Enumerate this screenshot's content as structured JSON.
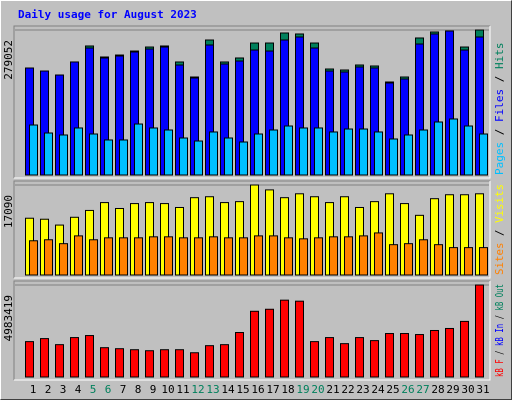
{
  "title": "Daily usage for August 2023",
  "legend_separator": " / ",
  "chart_data": [
    {
      "type": "bar",
      "ylim": [
        0,
        279052
      ],
      "yticks": [
        279052
      ],
      "series": [
        {
          "name": "Hits",
          "color": "#00805c",
          "values": [
            205900,
            200100,
            192400,
            217500,
            248300,
            227100,
            230900,
            238600,
            246300,
            248300,
            217500,
            188600,
            259800,
            217500,
            225200,
            254000,
            254000,
            273300,
            271400,
            254000,
            204000,
            202100,
            211700,
            209800,
            179000,
            188600,
            263700,
            275200,
            277100,
            246300,
            279052
          ]
        },
        {
          "name": "Files",
          "color": "#0000ff",
          "values": [
            205900,
            200100,
            192400,
            217500,
            244400,
            225200,
            229000,
            236700,
            242500,
            246300,
            211700,
            186700,
            250200,
            213600,
            219400,
            240500,
            238600,
            259800,
            265600,
            244400,
            200100,
            198200,
            207900,
            206000,
            177100,
            184800,
            252100,
            271400,
            277100,
            240500,
            265600
          ]
        },
        {
          "name": "Pages",
          "color": "#00c0ff",
          "values": [
            96200,
            80800,
            77000,
            90500,
            78900,
            67400,
            67400,
            98100,
            90500,
            86600,
            71200,
            65400,
            82800,
            71200,
            63500,
            78900,
            86600,
            94300,
            90500,
            90500,
            82800,
            88500,
            88500,
            82800,
            69300,
            77000,
            86600,
            102000,
            107800,
            94300,
            78900
          ]
        }
      ]
    },
    {
      "type": "bar",
      "ylim": [
        0,
        17090
      ],
      "yticks": [
        17090
      ],
      "series": [
        {
          "name": "Visits",
          "color": "#ffff00",
          "values": [
            10780,
            10590,
            9480,
            10960,
            12260,
            13750,
            12630,
            13560,
            13750,
            13560,
            12820,
            14680,
            14860,
            13750,
            13930,
            17090,
            16160,
            14680,
            15420,
            14860,
            13750,
            14860,
            12820,
            13930,
            15420,
            13560,
            11330,
            14490,
            15240,
            15240,
            15420
          ]
        },
        {
          "name": "Sites",
          "color": "#ff8000",
          "values": [
            6500,
            6690,
            5950,
            7430,
            6690,
            7060,
            7060,
            7060,
            7250,
            7250,
            7060,
            7060,
            7250,
            7060,
            7060,
            7430,
            7430,
            7060,
            6870,
            7060,
            7250,
            7250,
            7430,
            7990,
            5760,
            5950,
            6690,
            5760,
            5200,
            5200,
            5200
          ]
        }
      ]
    },
    {
      "type": "bar",
      "ylim": [
        0,
        4983419
      ],
      "yticks": [
        4983419
      ],
      "categories": [
        "1",
        "2",
        "3",
        "4",
        "5",
        "6",
        "7",
        "8",
        "9",
        "10",
        "11",
        "12",
        "13",
        "14",
        "15",
        "16",
        "17",
        "18",
        "19",
        "20",
        "21",
        "22",
        "23",
        "24",
        "25",
        "26",
        "27",
        "28",
        "29",
        "30",
        "31"
      ],
      "category_colors": [
        "#000000",
        "#000000",
        "#000000",
        "#000000",
        "#00805c",
        "#00805c",
        "#000000",
        "#000000",
        "#000000",
        "#000000",
        "#000000",
        "#00805c",
        "#00805c",
        "#000000",
        "#000000",
        "#000000",
        "#000000",
        "#000000",
        "#00805c",
        "#00805c",
        "#000000",
        "#000000",
        "#000000",
        "#000000",
        "#000000",
        "#00805c",
        "#00805c",
        "#000000",
        "#000000",
        "#000000",
        "#000000"
      ],
      "series": [
        {
          "name": "kB F",
          "color": "#ff0000",
          "values": [
            1916700,
            2081000,
            1752400,
            2135800,
            2245300,
            1588100,
            1533400,
            1478600,
            1423800,
            1478600,
            1478600,
            1314300,
            1697700,
            1752400,
            2409600,
            3559600,
            3669100,
            4162000,
            4107200,
            1916700,
            2135800,
            1807200,
            2135800,
            1971500,
            2354800,
            2354800,
            2300000,
            2519100,
            2628600,
            3012000,
            4983419
          ]
        }
      ],
      "legend_extra": [
        {
          "name": "kB In",
          "color": "#0000ff"
        },
        {
          "name": "kB Out",
          "color": "#00805c"
        }
      ]
    }
  ]
}
